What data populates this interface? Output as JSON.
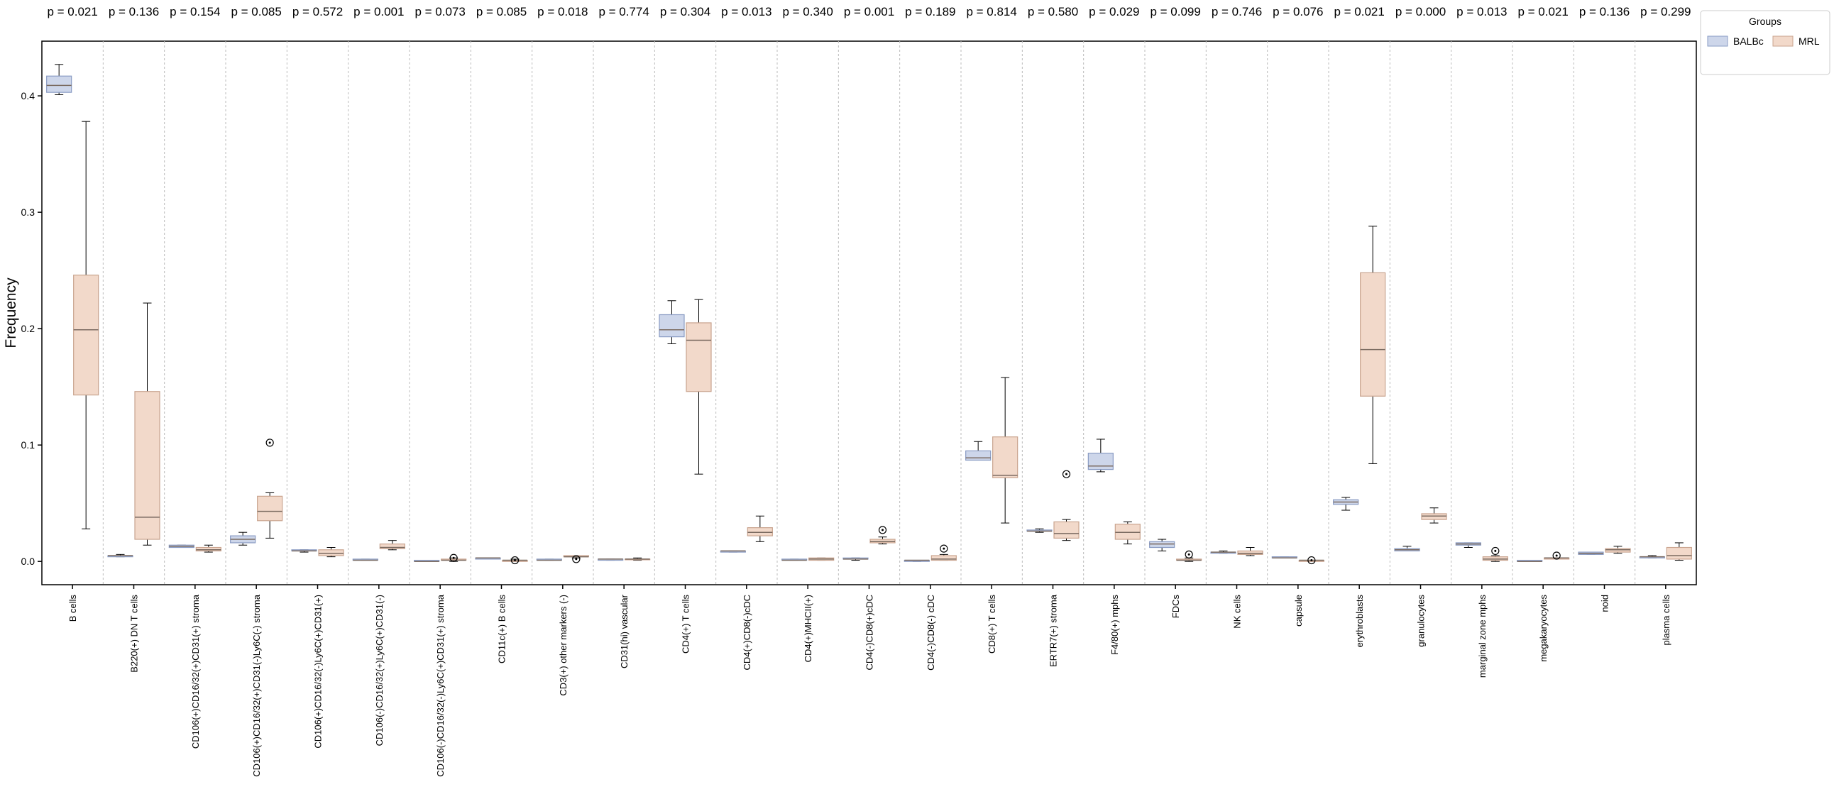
{
  "chart_data": {
    "type": "box",
    "ylabel": "Frequency",
    "categories": [
      "B cells",
      "B220(+) DN T cells",
      "CD106(+)CD16/32(+)CD31(+) stroma",
      "CD106(+)CD16/32(+)CD31(-)Ly6C(-) stroma",
      "CD106(+)CD16/32(-)Ly6C(+)CD31(+)",
      "CD106(-)CD16/32(+)Ly6C(+)CD31(-)",
      "CD106(-)CD16/32(-)Ly6C(+)CD31(+) stroma",
      "CD11c(+) B cells",
      "CD3(+) other markers (-)",
      "CD31(hi) vascular",
      "CD4(+) T cells",
      "CD4(+)CD8(-)cDC",
      "CD4(+)MHCII(+)",
      "CD4(-)CD8(+)cDC",
      "CD4(-)CD8(-) cDC",
      "CD8(+) T cells",
      "ERTR7(+) stroma",
      "F4/80(+) mphs",
      "FDCs",
      "NK cells",
      "capsule",
      "erythroblasts",
      "granulocytes",
      "marginal zone mphs",
      "megakaryocytes",
      "noid",
      "plasma cells"
    ],
    "p_values": [
      "p = 0.021",
      "p = 0.136",
      "p = 0.154",
      "p = 0.085",
      "p = 0.572",
      "p = 0.001",
      "p = 0.073",
      "p = 0.085",
      "p = 0.018",
      "p = 0.774",
      "p = 0.304",
      "p = 0.013",
      "p = 0.340",
      "p = 0.001",
      "p = 0.189",
      "p = 0.814",
      "p = 0.580",
      "p = 0.029",
      "p = 0.099",
      "p = 0.746",
      "p = 0.076",
      "p = 0.021",
      "p = 0.000",
      "p = 0.013",
      "p = 0.021",
      "p = 0.136",
      "p = 0.299"
    ],
    "legend_title": "Groups",
    "legend_position": "upper right outside",
    "series": [
      {
        "name": "BALBc",
        "color": "#cdd6ea",
        "edge": "#8a9cc4",
        "whisker_low": [
          0.401,
          0.004,
          0.012,
          0.014,
          0.008,
          0.001,
          0,
          0.002,
          0.001,
          0.001,
          0.187,
          0.008,
          0.001,
          0.001,
          0,
          0.087,
          0.025,
          0.077,
          0.009,
          0.007,
          0.003,
          0.044,
          0.009,
          0.012,
          0,
          0.006,
          0.003
        ],
        "q1": [
          0.403,
          0.004,
          0.012,
          0.016,
          0.009,
          0.001,
          0,
          0.002,
          0.001,
          0.001,
          0.193,
          0.008,
          0.001,
          0.002,
          0,
          0.087,
          0.026,
          0.079,
          0.012,
          0.007,
          0.003,
          0.049,
          0.009,
          0.014,
          0,
          0.006,
          0.003
        ],
        "median": [
          0.409,
          0.005,
          0.013,
          0.019,
          0.009,
          0.001,
          0,
          0.003,
          0.001,
          0.002,
          0.199,
          0.009,
          0.001,
          0.002,
          0.001,
          0.089,
          0.026,
          0.082,
          0.015,
          0.008,
          0.003,
          0.051,
          0.01,
          0.015,
          0,
          0.007,
          0.004
        ],
        "q3": [
          0.417,
          0.005,
          0.014,
          0.022,
          0.01,
          0.002,
          0.001,
          0.003,
          0.002,
          0.002,
          0.212,
          0.009,
          0.002,
          0.003,
          0.001,
          0.095,
          0.027,
          0.093,
          0.017,
          0.008,
          0.004,
          0.053,
          0.011,
          0.016,
          0.001,
          0.008,
          0.004
        ],
        "whisker_high": [
          0.427,
          0.006,
          0.014,
          0.025,
          0.01,
          0.002,
          0.001,
          0.003,
          0.002,
          0.002,
          0.224,
          0.009,
          0.002,
          0.003,
          0.001,
          0.103,
          0.028,
          0.105,
          0.019,
          0.009,
          0.004,
          0.055,
          0.013,
          0.016,
          0.001,
          0.008,
          0.005
        ],
        "outliers": [
          [],
          [],
          [],
          [],
          [],
          [],
          [],
          [],
          [],
          [],
          [],
          [],
          [],
          [],
          [],
          [],
          [],
          [],
          [],
          [],
          [],
          [],
          [],
          [],
          [],
          [],
          []
        ]
      },
      {
        "name": "MRL",
        "color": "#f2d9ca",
        "edge": "#c9a48f",
        "whisker_low": [
          0.028,
          0.014,
          0.008,
          0.02,
          0.004,
          0.01,
          0,
          0,
          0.003,
          0.001,
          0.075,
          0.017,
          0.001,
          0.015,
          0.001,
          0.033,
          0.018,
          0.015,
          0,
          0.005,
          0,
          0.084,
          0.033,
          0,
          0.002,
          0.007,
          0.001
        ],
        "q1": [
          0.143,
          0.019,
          0.009,
          0.035,
          0.005,
          0.011,
          0.001,
          0,
          0.004,
          0.002,
          0.146,
          0.022,
          0.001,
          0.016,
          0.001,
          0.072,
          0.02,
          0.019,
          0.001,
          0.006,
          0,
          0.142,
          0.036,
          0.001,
          0.002,
          0.008,
          0.002
        ],
        "median": [
          0.199,
          0.038,
          0.01,
          0.043,
          0.007,
          0.012,
          0.001,
          0.001,
          0.004,
          0.002,
          0.19,
          0.025,
          0.002,
          0.017,
          0.002,
          0.074,
          0.024,
          0.025,
          0.001,
          0.007,
          0.001,
          0.182,
          0.039,
          0.002,
          0.003,
          0.01,
          0.005
        ],
        "q3": [
          0.246,
          0.146,
          0.012,
          0.056,
          0.01,
          0.015,
          0.002,
          0.001,
          0.005,
          0.002,
          0.205,
          0.029,
          0.003,
          0.019,
          0.005,
          0.107,
          0.034,
          0.032,
          0.002,
          0.009,
          0.001,
          0.248,
          0.041,
          0.004,
          0.003,
          0.011,
          0.012
        ],
        "whisker_high": [
          0.378,
          0.222,
          0.014,
          0.059,
          0.012,
          0.018,
          0.003,
          0.002,
          0.005,
          0.003,
          0.225,
          0.039,
          0.003,
          0.021,
          0.006,
          0.158,
          0.036,
          0.034,
          0.003,
          0.012,
          0.001,
          0.288,
          0.046,
          0.005,
          0.003,
          0.013,
          0.016
        ],
        "outliers": [
          [],
          [],
          [],
          [
            0.102
          ],
          [],
          [],
          [
            0.003
          ],
          [
            0.001
          ],
          [
            0.002
          ],
          [],
          [],
          [],
          [],
          [
            0.027
          ],
          [
            0.011
          ],
          [],
          [
            0.075
          ],
          [],
          [
            0.006
          ],
          [],
          [
            0.001
          ],
          [],
          [],
          [
            0.009
          ],
          [
            0.005
          ],
          [],
          []
        ]
      }
    ],
    "ylim": [
      -0.02,
      0.447
    ],
    "yticks": [
      {
        "value": 0,
        "label": "0.0"
      },
      0.1,
      0.2,
      0.3,
      0.4
    ],
    "grid": false
  }
}
